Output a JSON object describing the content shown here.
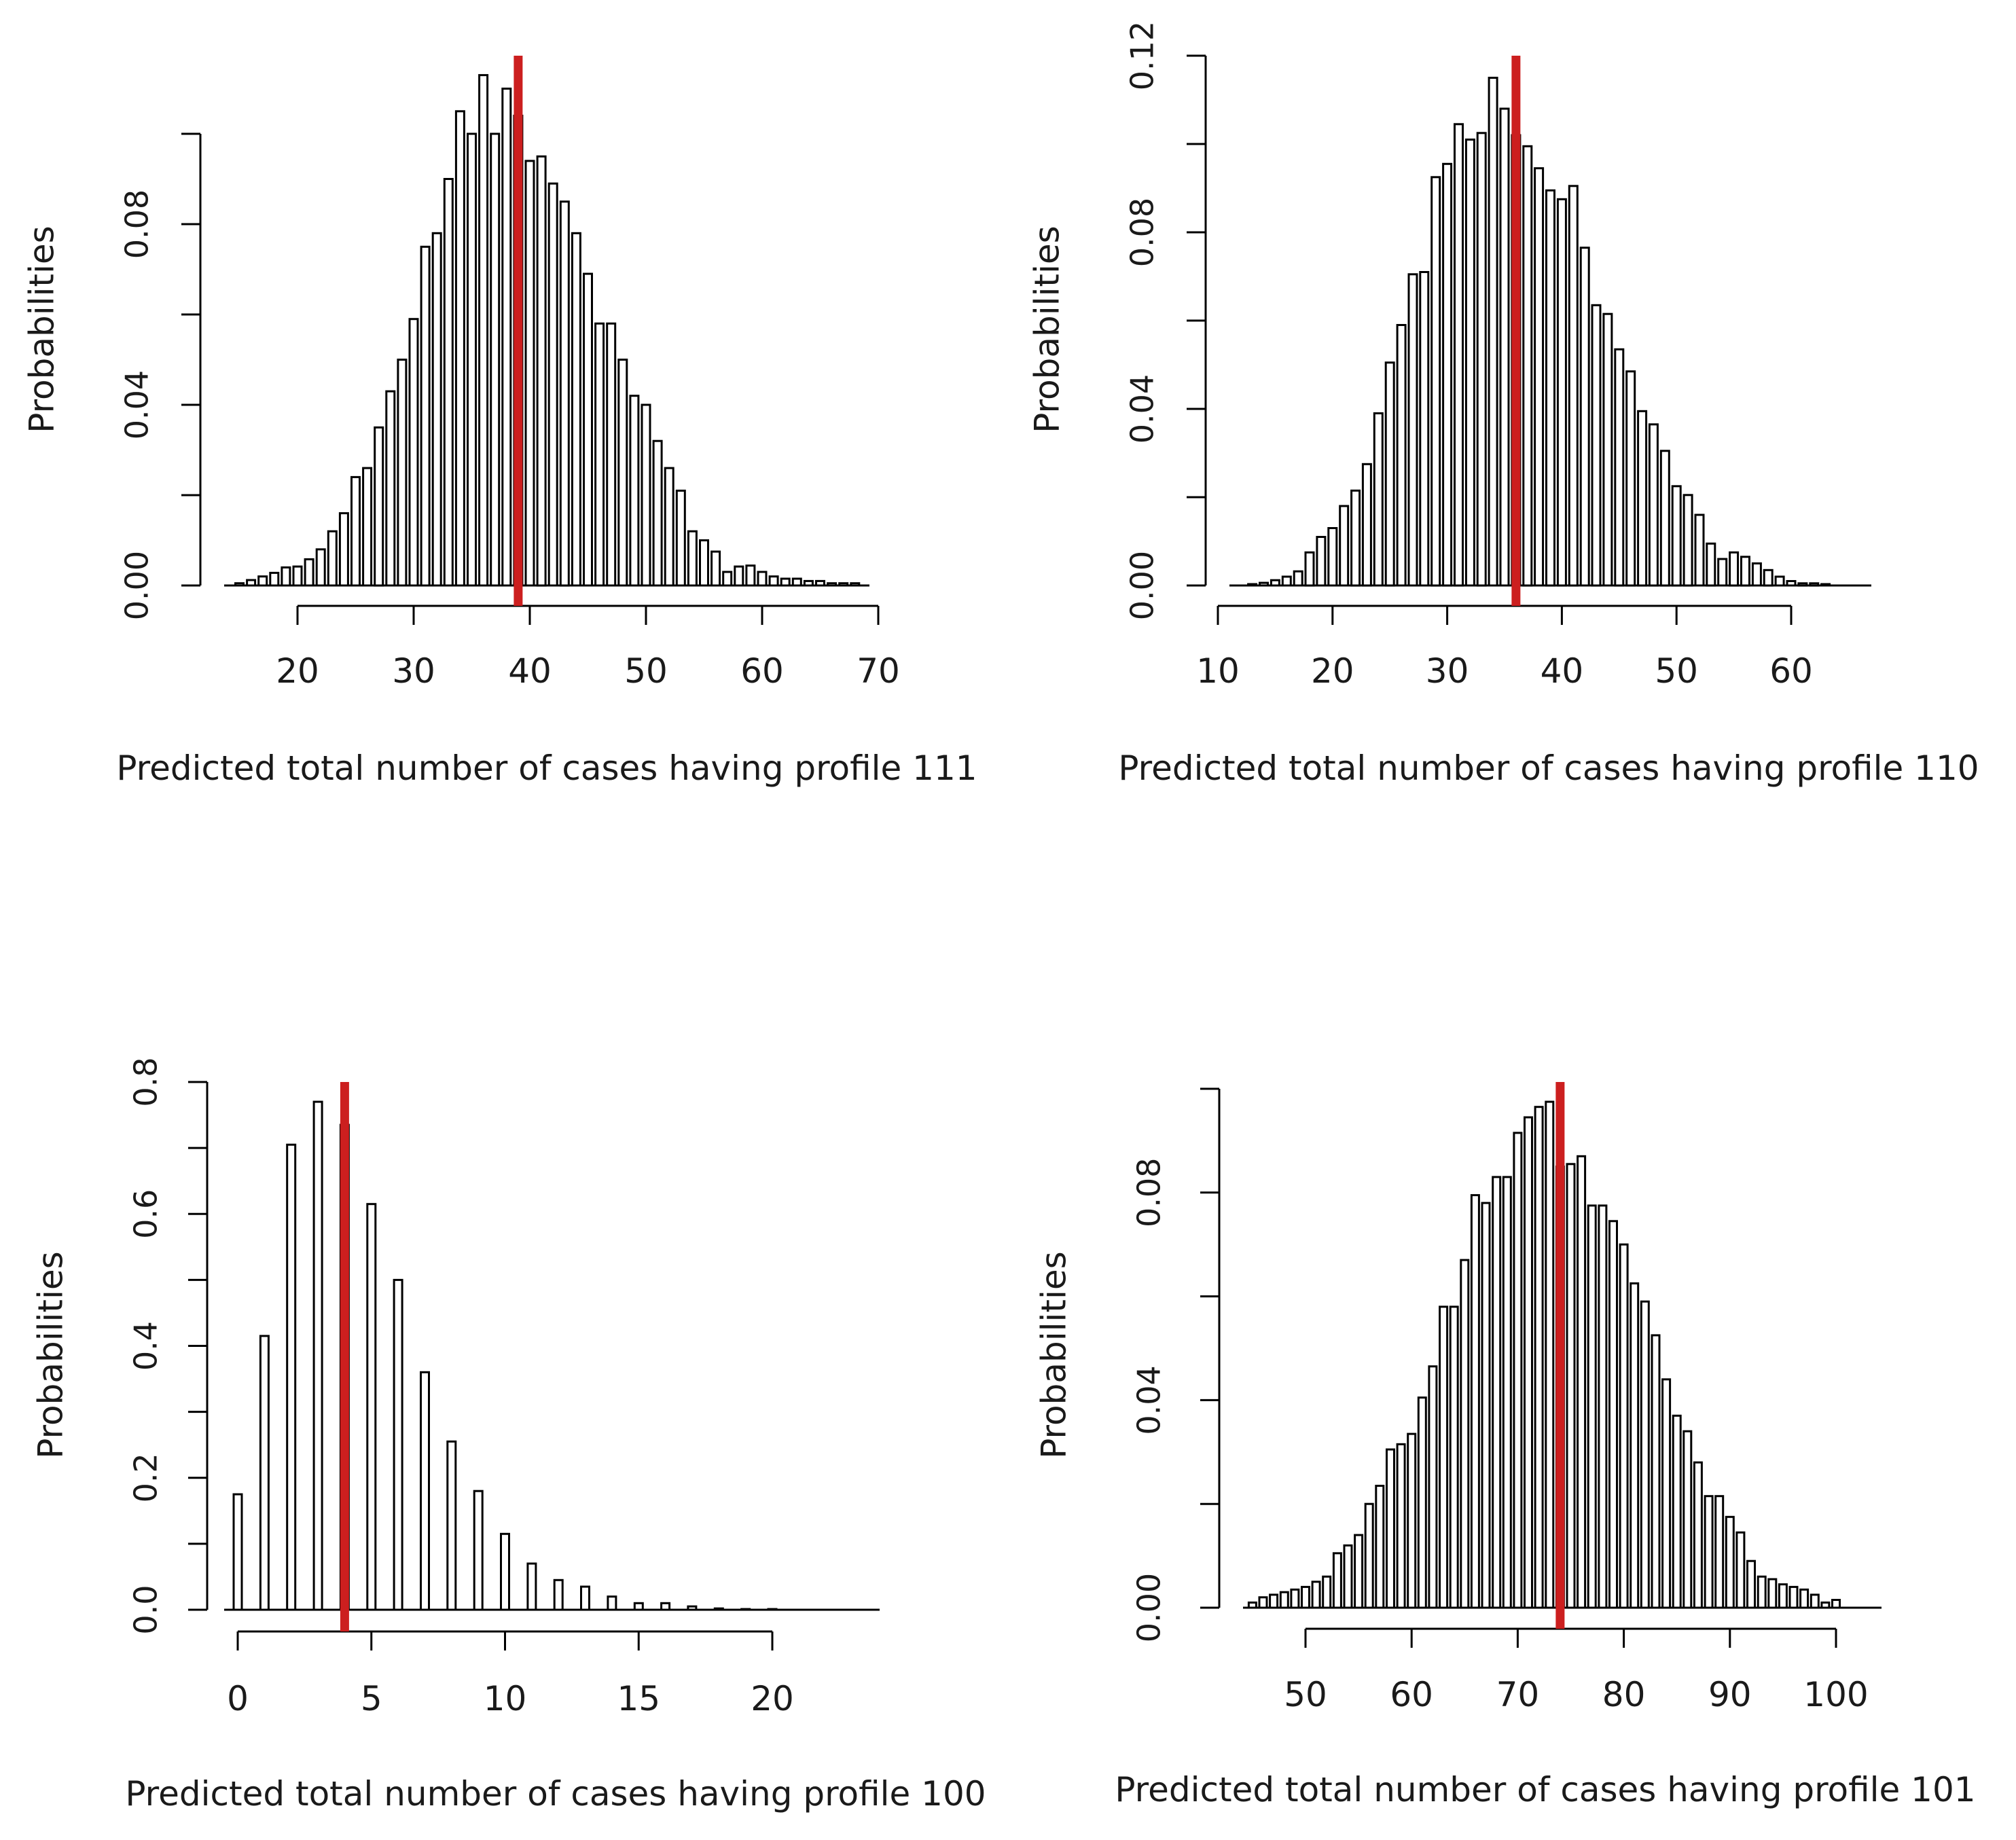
{
  "colors": {
    "bar_fill": "#ffffff",
    "bar_stroke": "#000000",
    "axis": "#000000",
    "marker": "#cc1f1f",
    "text": "#1a1a1a"
  },
  "chart_data": [
    {
      "type": "bar",
      "panel": "top-left",
      "title": "",
      "xlabel": "Predicted total number of cases having profile 111",
      "ylabel": "Probabilities",
      "x_axis_range": [
        20,
        70
      ],
      "x_ticks": [
        20,
        30,
        40,
        50,
        60,
        70
      ],
      "y_axis_range": [
        0,
        0.1
      ],
      "y_ticks": [
        "0.00",
        "0.04",
        "0.08"
      ],
      "marker_x": 39,
      "x": [
        15,
        16,
        17,
        18,
        19,
        20,
        21,
        22,
        23,
        24,
        25,
        26,
        27,
        28,
        29,
        30,
        31,
        32,
        33,
        34,
        35,
        36,
        37,
        38,
        39,
        40,
        41,
        42,
        43,
        44,
        45,
        46,
        47,
        48,
        49,
        50,
        51,
        52,
        53,
        54,
        55,
        56,
        57,
        58,
        59,
        60,
        61,
        62,
        63,
        64,
        65,
        66,
        67,
        68
      ],
      "values": [
        0.0005,
        0.0012,
        0.002,
        0.0028,
        0.004,
        0.0042,
        0.0058,
        0.008,
        0.012,
        0.016,
        0.024,
        0.026,
        0.035,
        0.043,
        0.05,
        0.059,
        0.075,
        0.078,
        0.09,
        0.105,
        0.1,
        0.113,
        0.1,
        0.11,
        0.104,
        0.094,
        0.095,
        0.089,
        0.085,
        0.078,
        0.069,
        0.058,
        0.058,
        0.05,
        0.042,
        0.04,
        0.032,
        0.026,
        0.021,
        0.012,
        0.01,
        0.0075,
        0.003,
        0.0042,
        0.0044,
        0.003,
        0.002,
        0.0015,
        0.0015,
        0.001,
        0.001,
        0.0005,
        0.0005,
        0.0005
      ]
    },
    {
      "type": "bar",
      "panel": "top-right",
      "title": "",
      "xlabel": "Predicted total number of cases having profile 110",
      "ylabel": "Probabilities",
      "x_axis_range": [
        10,
        60
      ],
      "x_ticks": [
        10,
        20,
        30,
        40,
        50,
        60
      ],
      "y_axis_range": [
        0,
        0.12
      ],
      "y_ticks": [
        "0.00",
        "0.04",
        "0.08",
        "0.12"
      ],
      "marker_x": 36,
      "x": [
        13,
        14,
        15,
        16,
        17,
        18,
        19,
        20,
        21,
        22,
        23,
        24,
        25,
        26,
        27,
        28,
        29,
        30,
        31,
        32,
        33,
        34,
        35,
        36,
        37,
        38,
        39,
        40,
        41,
        42,
        43,
        44,
        45,
        46,
        47,
        48,
        49,
        50,
        51,
        52,
        53,
        54,
        55,
        56,
        57,
        58,
        59,
        60,
        61,
        62,
        63
      ],
      "values": [
        0.0003,
        0.0006,
        0.0012,
        0.002,
        0.0032,
        0.0075,
        0.011,
        0.013,
        0.018,
        0.0215,
        0.0275,
        0.039,
        0.0505,
        0.059,
        0.0705,
        0.071,
        0.0925,
        0.0955,
        0.1045,
        0.101,
        0.1025,
        0.115,
        0.108,
        0.102,
        0.0995,
        0.0945,
        0.0895,
        0.0875,
        0.0905,
        0.0765,
        0.0635,
        0.0615,
        0.0535,
        0.0485,
        0.0395,
        0.0365,
        0.0305,
        0.0225,
        0.0205,
        0.016,
        0.0095,
        0.006,
        0.0075,
        0.0065,
        0.005,
        0.0035,
        0.002,
        0.001,
        0.0005,
        0.0005,
        0.0003
      ]
    },
    {
      "type": "bar",
      "panel": "bottom-left",
      "title": "",
      "xlabel": "Predicted total number of cases having profile 100",
      "ylabel": "Probabilities",
      "x_axis_range": [
        0,
        20
      ],
      "x_ticks": [
        0,
        5,
        10,
        15,
        20
      ],
      "y_axis_range": [
        0,
        0.8
      ],
      "y_ticks": [
        "0.0",
        "0.2",
        "0.4",
        "0.6",
        "0.8"
      ],
      "marker_x": 4,
      "x": [
        0,
        1,
        2,
        3,
        4,
        5,
        6,
        7,
        8,
        9,
        10,
        11,
        12,
        13,
        14,
        15,
        16,
        17,
        18,
        19,
        20
      ],
      "values": [
        0.175,
        0.415,
        0.705,
        0.77,
        0.735,
        0.615,
        0.5,
        0.36,
        0.255,
        0.18,
        0.115,
        0.07,
        0.045,
        0.035,
        0.02,
        0.01,
        0.01,
        0.005,
        0.002,
        0.001,
        0.001
      ]
    },
    {
      "type": "bar",
      "panel": "bottom-right",
      "title": "",
      "xlabel": "Predicted total number of cases having profile 101",
      "ylabel": "Probabilities",
      "x_axis_range": [
        50,
        100
      ],
      "x_ticks": [
        50,
        60,
        70,
        80,
        90,
        100
      ],
      "y_axis_range": [
        0,
        0.1
      ],
      "y_ticks": [
        "0.00",
        "0.04",
        "0.08"
      ],
      "marker_x": 74,
      "x": [
        45,
        46,
        47,
        48,
        49,
        50,
        51,
        52,
        53,
        54,
        55,
        56,
        57,
        58,
        59,
        60,
        61,
        62,
        63,
        64,
        65,
        66,
        67,
        68,
        69,
        70,
        71,
        72,
        73,
        74,
        75,
        76,
        77,
        78,
        79,
        80,
        81,
        82,
        83,
        84,
        85,
        86,
        87,
        88,
        89,
        90,
        91,
        92,
        93,
        94,
        95,
        96,
        97,
        98,
        99,
        100
      ],
      "values": [
        0.001,
        0.002,
        0.0025,
        0.003,
        0.0035,
        0.004,
        0.005,
        0.006,
        0.0105,
        0.012,
        0.014,
        0.02,
        0.0235,
        0.0305,
        0.0315,
        0.0335,
        0.0405,
        0.0465,
        0.058,
        0.058,
        0.067,
        0.0795,
        0.078,
        0.083,
        0.083,
        0.0915,
        0.0945,
        0.0965,
        0.0975,
        0.085,
        0.0855,
        0.087,
        0.0775,
        0.0775,
        0.0745,
        0.07,
        0.0625,
        0.059,
        0.0525,
        0.044,
        0.037,
        0.034,
        0.028,
        0.0215,
        0.0215,
        0.0175,
        0.0145,
        0.009,
        0.006,
        0.0055,
        0.0045,
        0.004,
        0.0035,
        0.0025,
        0.001,
        0.0015
      ]
    }
  ]
}
